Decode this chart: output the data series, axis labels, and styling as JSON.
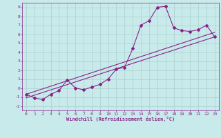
{
  "xlabel": "Windchill (Refroidissement éolien,°C)",
  "background_color": "#c8eaea",
  "grid_color": "#aed4d4",
  "line_color": "#882288",
  "xlim": [
    -0.5,
    23.5
  ],
  "ylim": [
    -2.5,
    9.5
  ],
  "xticks": [
    0,
    1,
    2,
    3,
    4,
    5,
    6,
    7,
    8,
    9,
    10,
    11,
    12,
    13,
    14,
    15,
    16,
    17,
    18,
    19,
    20,
    21,
    22,
    23
  ],
  "yticks": [
    -2,
    -1,
    0,
    1,
    2,
    3,
    4,
    5,
    6,
    7,
    8,
    9
  ],
  "line1_x": [
    0,
    1,
    2,
    3,
    4,
    5,
    6,
    7,
    8,
    9,
    10,
    11,
    12,
    13,
    14,
    15,
    16,
    17,
    18,
    19,
    20,
    21,
    22,
    23
  ],
  "line1_y": [
    -0.7,
    -1.1,
    -1.3,
    -0.7,
    -0.3,
    0.9,
    0.0,
    -0.2,
    0.1,
    0.4,
    1.0,
    2.1,
    2.3,
    4.4,
    7.0,
    7.5,
    9.0,
    9.1,
    6.7,
    6.4,
    6.3,
    6.5,
    7.0,
    5.7
  ],
  "line2_x": [
    0,
    23
  ],
  "line2_y": [
    -1.1,
    5.7
  ],
  "line3_x": [
    0,
    23
  ],
  "line3_y": [
    -0.7,
    6.2
  ]
}
